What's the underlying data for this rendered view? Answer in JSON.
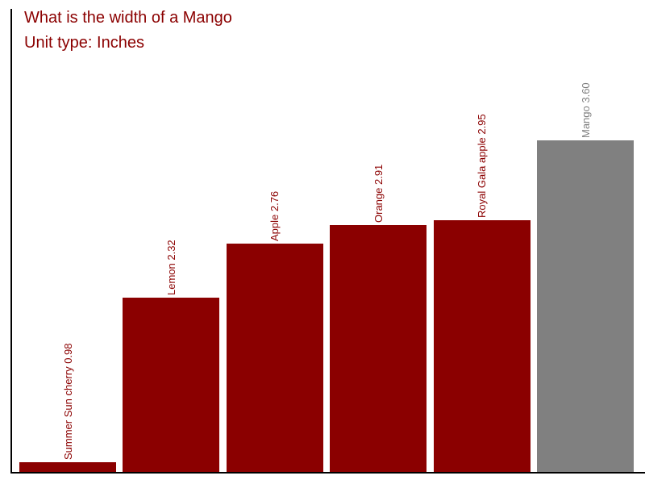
{
  "header": {
    "title": "What is the width of a Mango",
    "subtitle": "Unit type: Inches"
  },
  "colors": {
    "title_text": "#8b0000",
    "subtitle_text": "#8b0000",
    "bar_default": "#8b0000",
    "bar_highlight": "#808080",
    "axis": "#000000",
    "background": "#ffffff"
  },
  "chart_data": {
    "type": "bar",
    "title": "What is the width of a Mango",
    "subtitle": "Unit type: Inches",
    "unit": "Inches",
    "categories": [
      "Summer Sun cherry",
      "Lemon",
      "Apple",
      "Orange",
      "Royal Gala apple",
      "Mango"
    ],
    "values": [
      0.98,
      2.32,
      2.76,
      2.91,
      2.95,
      3.6
    ],
    "bar_labels": [
      "Summer Sun cherry 0.98",
      "Lemon 2.32",
      "Apple 2.76",
      "Orange 2.91",
      "Royal Gala apple 2.95",
      "Mango 3.60"
    ],
    "bar_colors": [
      "#8b0000",
      "#8b0000",
      "#8b0000",
      "#8b0000",
      "#8b0000",
      "#808080"
    ],
    "highlighted_category": "Mango",
    "highlighted_value": "3.60",
    "xlabel": "",
    "ylabel": "",
    "ylim": [
      0.9,
      4.68
    ],
    "grid": false,
    "legend": false,
    "bar_label_rotation": -90
  }
}
